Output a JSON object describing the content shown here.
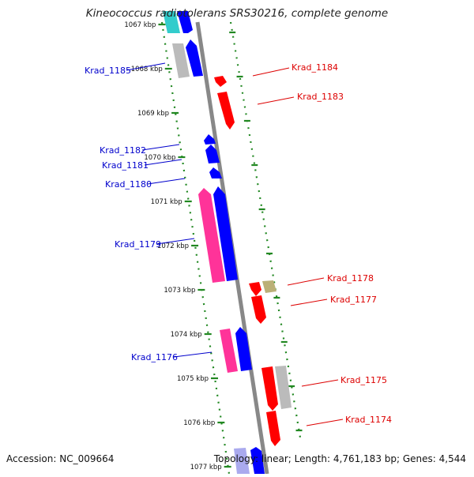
{
  "title": "Kineococcus radiotolerans SRS30216, complete genome",
  "accession": "Accession: NC_009664",
  "stats": "Topology: linear; Length: 4,761,183 bp; Genes: 4,544",
  "colors": {
    "forward_genes": "#0000ff",
    "reverse_genes": "#ff0000",
    "label_left": "#0000cc",
    "label_right": "#dd0000",
    "backbone": "#888888",
    "tick_dots": "#228822",
    "cyan": "#33cccc",
    "grey": "#bbbbbb",
    "pink": "#ff3399",
    "khaki": "#bbb077"
  },
  "scale": {
    "unit": "kbp",
    "ticks": [
      "1067 kbp",
      "1068 kbp",
      "1069 kbp",
      "1070 kbp",
      "1071 kbp",
      "1072 kbp",
      "1073 kbp",
      "1074 kbp",
      "1075 kbp",
      "1076 kbp",
      "1077 kbp"
    ]
  },
  "gene_labels_left": [
    {
      "name": "Krad_1185"
    },
    {
      "name": "Krad_1182"
    },
    {
      "name": "Krad_1181"
    },
    {
      "name": "Krad_1180"
    },
    {
      "name": "Krad_1179"
    },
    {
      "name": "Krad_1176"
    }
  ],
  "gene_labels_right": [
    {
      "name": "Krad_1184"
    },
    {
      "name": "Krad_1183"
    },
    {
      "name": "Krad_1178"
    },
    {
      "name": "Krad_1177"
    },
    {
      "name": "Krad_1175"
    },
    {
      "name": "Krad_1174"
    }
  ]
}
